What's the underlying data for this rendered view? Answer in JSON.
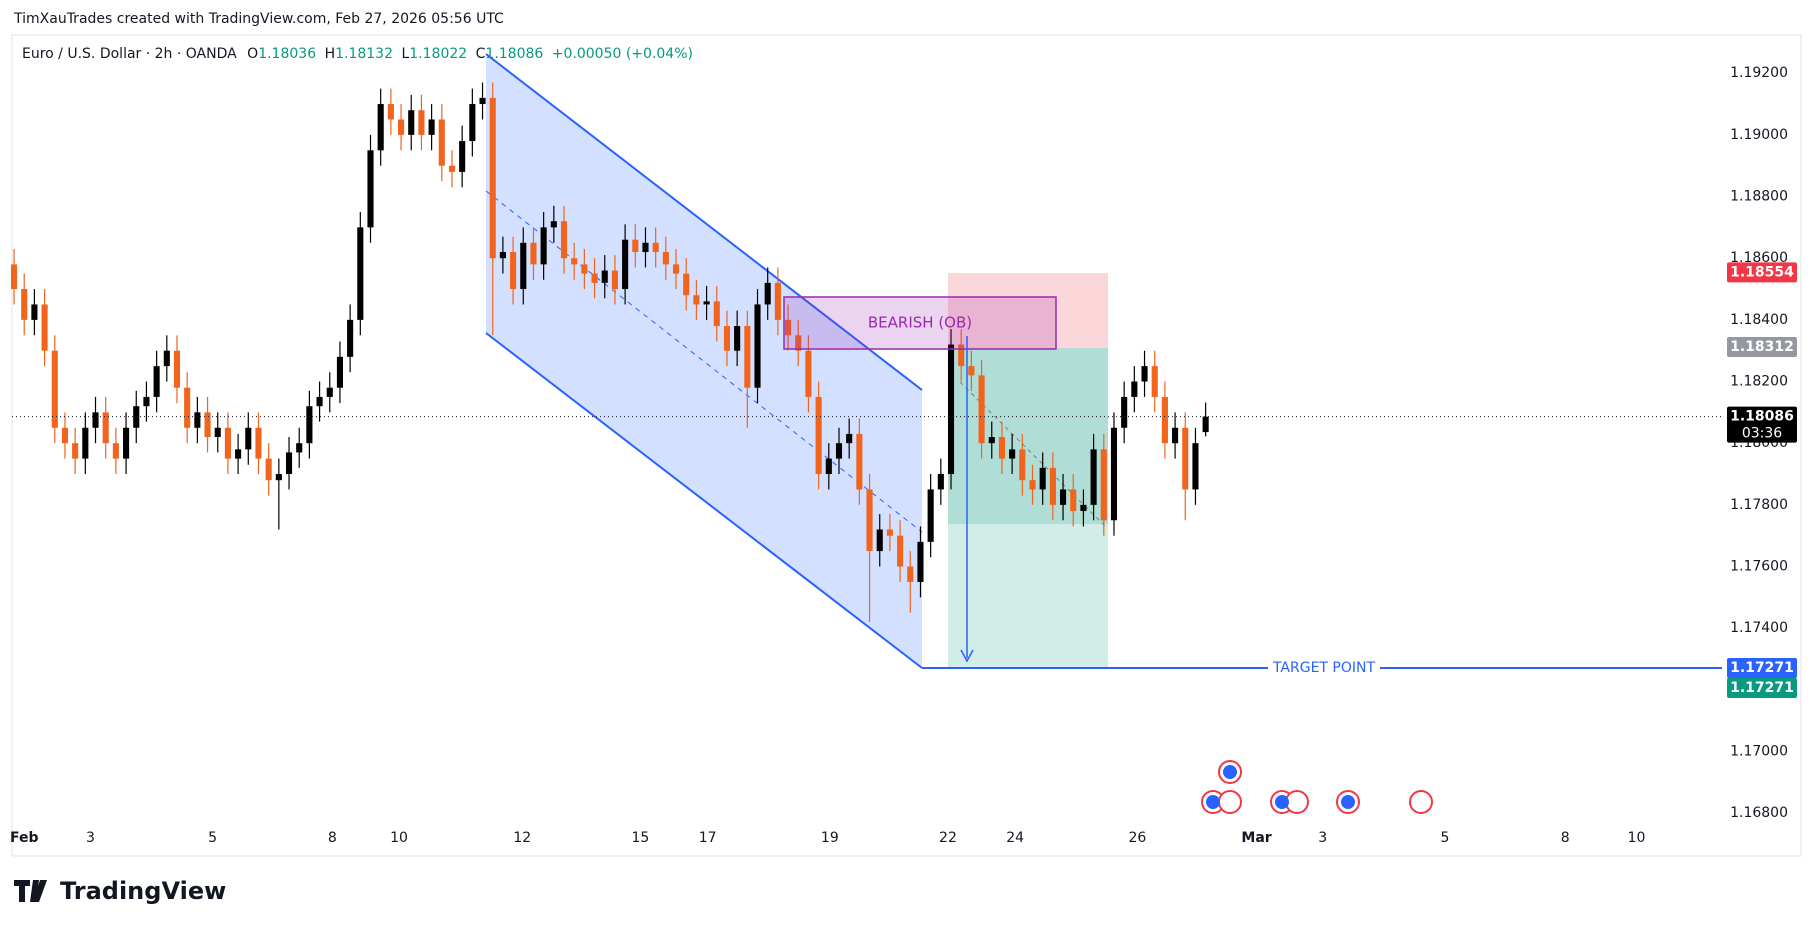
{
  "attribution": "TimXauTrades created with TradingView.com, Feb 27, 2026 05:56 UTC",
  "logo": "TradingView",
  "chart_data": {
    "type": "candlestick",
    "title": "Euro / U.S. Dollar · 2h · OANDA",
    "ohlc_letters": [
      "O",
      "H",
      "L",
      "C"
    ],
    "change": "+0.00050 (+0.04%)",
    "up_color": "#000000",
    "down_color": "#f0641e",
    "open": [
      1.1858,
      1.185,
      1.184,
      1.1845,
      1.183,
      1.1805,
      1.18,
      1.1795,
      1.1805,
      1.181,
      1.18,
      1.1795,
      1.1805,
      1.1812,
      1.1815,
      1.1825,
      1.183,
      1.1818,
      1.1805,
      1.181,
      1.1802,
      1.1805,
      1.1795,
      1.1798,
      1.1805,
      1.1795,
      1.1788,
      1.179,
      1.1797,
      1.18,
      1.1812,
      1.1815,
      1.1818,
      1.1828,
      1.184,
      1.187,
      1.1895,
      1.191,
      1.1905,
      1.19,
      1.1908,
      1.19,
      1.1905,
      1.189,
      1.1888,
      1.1898,
      1.191,
      1.1912,
      1.186,
      1.1862,
      1.185,
      1.1865,
      1.1858,
      1.187,
      1.1872,
      1.186,
      1.1858,
      1.1855,
      1.1852,
      1.1856,
      1.185,
      1.1866,
      1.1862,
      1.1865,
      1.1862,
      1.1858,
      1.1855,
      1.1848,
      1.1845,
      1.1846,
      1.1838,
      1.183,
      1.1838,
      1.1818,
      1.1845,
      1.1852,
      1.184,
      1.1835,
      1.183,
      1.1815,
      1.179,
      1.1795,
      1.18,
      1.1803,
      1.1785,
      1.1765,
      1.1772,
      1.177,
      1.176,
      1.1755,
      1.1768,
      1.1785,
      1.179,
      1.1832,
      1.1825,
      1.1822,
      1.18,
      1.1802,
      1.1795,
      1.1798,
      1.1788,
      1.1785,
      1.1792,
      1.178,
      1.1785,
      1.1778,
      1.178,
      1.1798,
      1.1775,
      1.1805,
      1.1815,
      1.182,
      1.1825,
      1.1815,
      1.18,
      1.1805,
      1.1785,
      1.18036
    ],
    "high": [
      1.1863,
      1.1855,
      1.185,
      1.185,
      1.1835,
      1.181,
      1.1805,
      1.181,
      1.1815,
      1.1815,
      1.1805,
      1.181,
      1.1817,
      1.182,
      1.183,
      1.1835,
      1.1835,
      1.1823,
      1.1815,
      1.1815,
      1.181,
      1.181,
      1.1803,
      1.181,
      1.181,
      1.18,
      1.1795,
      1.1802,
      1.1805,
      1.1817,
      1.182,
      1.1823,
      1.1833,
      1.1845,
      1.1875,
      1.19,
      1.1915,
      1.1915,
      1.191,
      1.1913,
      1.1913,
      1.191,
      1.191,
      1.1895,
      1.1903,
      1.1915,
      1.1917,
      1.1917,
      1.1867,
      1.1867,
      1.187,
      1.187,
      1.1875,
      1.1877,
      1.1877,
      1.1865,
      1.1863,
      1.186,
      1.1861,
      1.1861,
      1.1871,
      1.1871,
      1.187,
      1.187,
      1.1867,
      1.1863,
      1.186,
      1.1853,
      1.1851,
      1.1851,
      1.1843,
      1.1843,
      1.1843,
      1.185,
      1.1857,
      1.1857,
      1.1845,
      1.184,
      1.1835,
      1.182,
      1.18,
      1.1805,
      1.1808,
      1.1808,
      1.179,
      1.1777,
      1.1777,
      1.1775,
      1.1765,
      1.1773,
      1.179,
      1.1795,
      1.1837,
      1.1837,
      1.183,
      1.1827,
      1.1807,
      1.1807,
      1.1803,
      1.1803,
      1.1793,
      1.1797,
      1.1797,
      1.179,
      1.179,
      1.1785,
      1.1803,
      1.1803,
      1.181,
      1.182,
      1.1825,
      1.183,
      1.183,
      1.182,
      1.181,
      1.181,
      1.1805,
      1.18132
    ],
    "low": [
      1.1845,
      1.1835,
      1.1835,
      1.1825,
      1.18,
      1.1795,
      1.179,
      1.179,
      1.18,
      1.1795,
      1.179,
      1.179,
      1.18,
      1.1807,
      1.181,
      1.182,
      1.1813,
      1.18,
      1.18,
      1.1797,
      1.1797,
      1.179,
      1.179,
      1.1793,
      1.179,
      1.1783,
      1.1772,
      1.1785,
      1.1792,
      1.1795,
      1.1807,
      1.181,
      1.1813,
      1.1823,
      1.1835,
      1.1865,
      1.189,
      1.19,
      1.1895,
      1.1895,
      1.1895,
      1.1895,
      1.1885,
      1.1883,
      1.1883,
      1.1893,
      1.1905,
      1.1835,
      1.1855,
      1.1845,
      1.1845,
      1.1853,
      1.1853,
      1.1865,
      1.1855,
      1.1853,
      1.185,
      1.1847,
      1.1847,
      1.1845,
      1.1845,
      1.1857,
      1.1857,
      1.1857,
      1.1853,
      1.185,
      1.1843,
      1.184,
      1.184,
      1.1833,
      1.1825,
      1.1825,
      1.1805,
      1.1813,
      1.184,
      1.1835,
      1.183,
      1.1825,
      1.181,
      1.1785,
      1.1785,
      1.179,
      1.1795,
      1.178,
      1.1742,
      1.176,
      1.1765,
      1.1755,
      1.1745,
      1.175,
      1.1763,
      1.178,
      1.1785,
      1.182,
      1.1817,
      1.1795,
      1.1795,
      1.179,
      1.179,
      1.1783,
      1.178,
      1.178,
      1.1775,
      1.1775,
      1.1773,
      1.1773,
      1.1775,
      1.177,
      1.177,
      1.18,
      1.181,
      1.1815,
      1.181,
      1.1795,
      1.1795,
      1.1775,
      1.178,
      1.18022
    ],
    "close": [
      1.185,
      1.184,
      1.1845,
      1.183,
      1.1805,
      1.18,
      1.1795,
      1.1805,
      1.181,
      1.18,
      1.1795,
      1.1805,
      1.1812,
      1.1815,
      1.1825,
      1.183,
      1.1818,
      1.1805,
      1.181,
      1.1802,
      1.1805,
      1.1795,
      1.1798,
      1.1805,
      1.1795,
      1.1788,
      1.179,
      1.1797,
      1.18,
      1.1812,
      1.1815,
      1.1818,
      1.1828,
      1.184,
      1.187,
      1.1895,
      1.191,
      1.1905,
      1.19,
      1.1908,
      1.19,
      1.1905,
      1.189,
      1.1888,
      1.1898,
      1.191,
      1.1912,
      1.186,
      1.1862,
      1.185,
      1.1865,
      1.1858,
      1.187,
      1.1872,
      1.186,
      1.1858,
      1.1855,
      1.1852,
      1.1856,
      1.185,
      1.1866,
      1.1862,
      1.1865,
      1.1862,
      1.1858,
      1.1855,
      1.1848,
      1.1845,
      1.1846,
      1.1838,
      1.183,
      1.1838,
      1.1818,
      1.1845,
      1.1852,
      1.184,
      1.1835,
      1.183,
      1.1815,
      1.179,
      1.1795,
      1.18,
      1.1803,
      1.1785,
      1.1765,
      1.1772,
      1.177,
      1.176,
      1.1755,
      1.1768,
      1.1785,
      1.179,
      1.1832,
      1.1825,
      1.1822,
      1.18,
      1.1802,
      1.1795,
      1.1798,
      1.1788,
      1.1785,
      1.1792,
      1.178,
      1.1785,
      1.1778,
      1.178,
      1.1798,
      1.1775,
      1.1805,
      1.1815,
      1.182,
      1.1825,
      1.1815,
      1.18,
      1.1805,
      1.1785,
      1.18,
      1.18086
    ],
    "xlim": [
      -0.2,
      167.7
    ],
    "xticks": [
      {
        "value": 1.0,
        "label": "Feb"
      },
      {
        "value": 7.5,
        "label": "3"
      },
      {
        "value": 19.5,
        "label": "5"
      },
      {
        "value": 31.25,
        "label": "8"
      },
      {
        "value": 37.8,
        "label": "10"
      },
      {
        "value": 49.9,
        "label": "12"
      },
      {
        "value": 61.5,
        "label": "15"
      },
      {
        "value": 68.1,
        "label": "17"
      },
      {
        "value": 80.1,
        "label": "19"
      },
      {
        "value": 91.7,
        "label": "22"
      },
      {
        "value": 98.3,
        "label": "24"
      },
      {
        "value": 110.3,
        "label": "26"
      },
      {
        "value": 122.0,
        "label": "Mar"
      },
      {
        "value": 128.5,
        "label": "3"
      },
      {
        "value": 140.5,
        "label": "5"
      },
      {
        "value": 152.3,
        "label": "8"
      },
      {
        "value": 159.3,
        "label": "10"
      }
    ],
    "ylim": [
      1.16661,
      1.19324
    ],
    "yticks": [
      {
        "value": 1.168,
        "label": "1.16800"
      },
      {
        "value": 1.17,
        "label": "1.17000"
      },
      {
        "value": 1.172,
        "label": "1.17200"
      },
      {
        "value": 1.174,
        "label": "1.17400"
      },
      {
        "value": 1.176,
        "label": "1.17600"
      },
      {
        "value": 1.178,
        "label": "1.17800"
      },
      {
        "value": 1.18,
        "label": "1.18000"
      },
      {
        "value": 1.182,
        "label": "1.18200"
      },
      {
        "value": 1.184,
        "label": "1.18400"
      },
      {
        "value": 1.186,
        "label": "1.18600"
      },
      {
        "value": 1.188,
        "label": "1.18800"
      },
      {
        "value": 1.19,
        "label": "1.19000"
      },
      {
        "value": 1.192,
        "label": "1.19200"
      }
    ],
    "grid": false,
    "price_labels": [
      {
        "value": 1.18554,
        "color": "#f23645"
      },
      {
        "value": 1.18312,
        "color": "#9598a1"
      },
      {
        "value": 1.18086,
        "color": "#000000",
        "countdown": "03:36"
      },
      {
        "value": 1.17271,
        "color": "#2962ff"
      },
      {
        "value": 1.17271,
        "color": "#089981"
      }
    ],
    "annotations": {
      "order_block": "BEARISH (OB)",
      "target": "TARGET POINT"
    }
  }
}
